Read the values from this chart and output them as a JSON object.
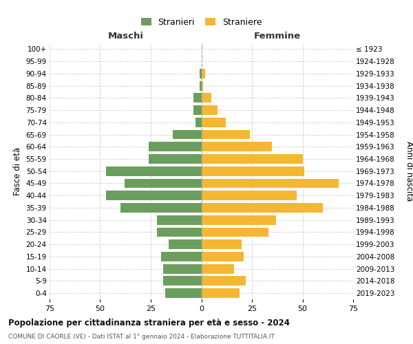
{
  "age_groups": [
    "0-4",
    "5-9",
    "10-14",
    "15-19",
    "20-24",
    "25-29",
    "30-34",
    "35-39",
    "40-44",
    "45-49",
    "50-54",
    "55-59",
    "60-64",
    "65-69",
    "70-74",
    "75-79",
    "80-84",
    "85-89",
    "90-94",
    "95-99",
    "100+"
  ],
  "birth_years": [
    "2019-2023",
    "2014-2018",
    "2009-2013",
    "2004-2008",
    "1999-2003",
    "1994-1998",
    "1989-1993",
    "1984-1988",
    "1979-1983",
    "1974-1978",
    "1969-1973",
    "1964-1968",
    "1959-1963",
    "1954-1958",
    "1949-1953",
    "1944-1948",
    "1939-1943",
    "1934-1938",
    "1929-1933",
    "1924-1928",
    "≤ 1923"
  ],
  "maschi": [
    18,
    19,
    19,
    20,
    16,
    22,
    22,
    40,
    47,
    38,
    47,
    26,
    26,
    14,
    3,
    4,
    4,
    1,
    1,
    0,
    0
  ],
  "femmine": [
    19,
    22,
    16,
    21,
    20,
    33,
    37,
    60,
    47,
    68,
    51,
    50,
    35,
    24,
    12,
    8,
    5,
    1,
    2,
    0,
    0
  ],
  "maschi_color": "#6b9e5e",
  "femmine_color": "#f5b731",
  "background_color": "#ffffff",
  "grid_color": "#cccccc",
  "title": "Popolazione per cittadinanza straniera per età e sesso - 2024",
  "subtitle": "COMUNE DI CAORLE (VE) - Dati ISTAT al 1° gennaio 2024 - Elaborazione TUTTITALIA.IT",
  "xlabel_left": "Maschi",
  "xlabel_right": "Femmine",
  "ylabel_left": "Fasce di età",
  "ylabel_right": "Anni di nascita",
  "legend_stranieri": "Stranieri",
  "legend_straniere": "Straniere",
  "xlim": 75,
  "xtick_labels": [
    "75",
    "50",
    "25",
    "0",
    "25",
    "50",
    "75"
  ]
}
